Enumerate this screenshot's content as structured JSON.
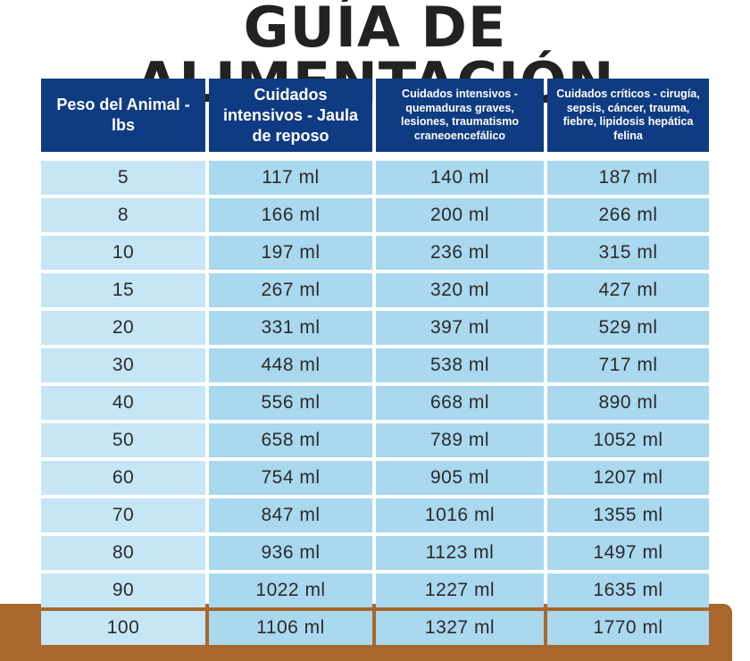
{
  "title": "GUÍA DE ALIMENTACIÓN",
  "headers": [
    "Peso del Animal - lbs",
    "Cuidados intensivos - Jaula de reposo",
    "Cuidados intensivos - quemaduras graves, lesiones, traumatismo craneoencefálico",
    "Cuidados críticos - cirugía, sepsis, cáncer, trauma, fiebre, lipidosis hepática felina"
  ],
  "rows": [
    [
      "5",
      "117 ml",
      "140 ml",
      "187 ml"
    ],
    [
      "8",
      "166 ml",
      "200 ml",
      "266 ml"
    ],
    [
      "10",
      "197 ml",
      "236 ml",
      "315 ml"
    ],
    [
      "15",
      "267 ml",
      "320 ml",
      "427 ml"
    ],
    [
      "20",
      "331 ml",
      "397 ml",
      "529 ml"
    ],
    [
      "30",
      "448 ml",
      "538 ml",
      "717 ml"
    ],
    [
      "40",
      "556 ml",
      "668 ml",
      "890 ml"
    ],
    [
      "50",
      "658 ml",
      "789 ml",
      "1052 ml"
    ],
    [
      "60",
      "754 ml",
      "905 ml",
      "1207 ml"
    ],
    [
      "70",
      "847 ml",
      "1016 ml",
      "1355 ml"
    ],
    [
      "80",
      "936 ml",
      "1123 ml",
      "1497 ml"
    ],
    [
      "90",
      "1022 ml",
      "1227 ml",
      "1635 ml"
    ],
    [
      "100",
      "1106 ml",
      "1327 ml",
      "1770 ml"
    ]
  ],
  "colors": {
    "header_bg": "#0f3b82",
    "cell_bg": "#a9d8ef",
    "first_col_bg": "#c6e6f5",
    "title_text": "#222222",
    "band": "#a8682c"
  }
}
